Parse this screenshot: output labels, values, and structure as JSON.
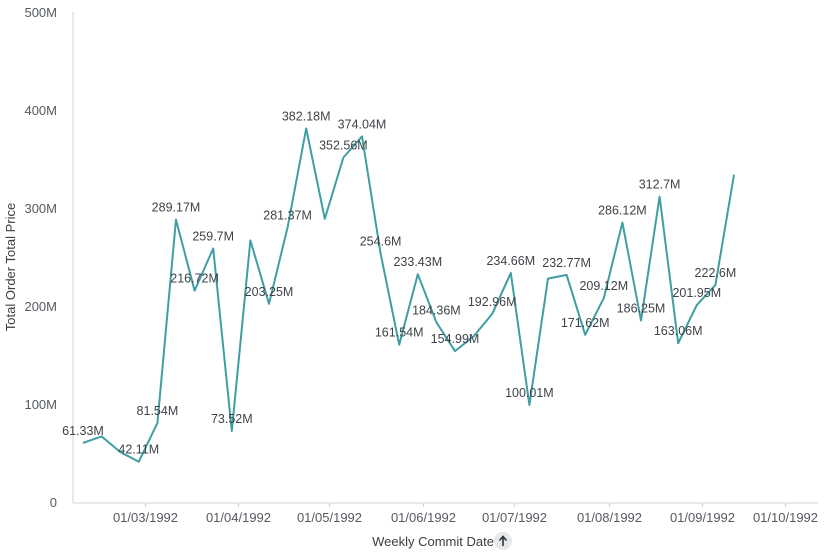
{
  "chart_data": {
    "type": "line",
    "xlabel": "Weekly Commit Date",
    "ylabel": "Total Order Total Price",
    "sort_icon": "arrow-up-icon",
    "ylim": [
      0,
      500
    ],
    "y_ticks": [
      "0",
      "100M",
      "200M",
      "300M",
      "400M",
      "500M"
    ],
    "x_ticks": [
      "01/03/1992",
      "01/04/1992",
      "01/05/1992",
      "01/06/1992",
      "01/07/1992",
      "01/08/1992",
      "01/09/1992",
      "01/10/1992"
    ],
    "line_color": "#3f9ea3",
    "series": [
      {
        "values": [
          61.33,
          68.0,
          52.0,
          42.11,
          81.54,
          289.17,
          216.72,
          259.7,
          73.52,
          268.0,
          203.25,
          281.37,
          382.18,
          290.0,
          352.56,
          374.04,
          254.6,
          161.54,
          233.43,
          184.36,
          154.99,
          170.0,
          192.96,
          234.66,
          100.01,
          229.0,
          232.77,
          171.62,
          209.12,
          286.12,
          186.25,
          312.7,
          163.06,
          201.95,
          222.6,
          335.0
        ],
        "labels": [
          "61.33M",
          "",
          "",
          "42.11M",
          "81.54M",
          "289.17M",
          "216.72M",
          "259.7M",
          "73.52M",
          "",
          "203.25M",
          "281.37M",
          "382.18M",
          "",
          "352.56M",
          "374.04M",
          "254.6M",
          "161.54M",
          "233.43M",
          "184.36M",
          "154.99M",
          "",
          "192.96M",
          "234.66M",
          "100.01M",
          "",
          "232.77M",
          "171.62M",
          "209.12M",
          "286.12M",
          "186.25M",
          "312.7M",
          "163.06M",
          "201.95M",
          "222.6M",
          ""
        ]
      }
    ]
  }
}
